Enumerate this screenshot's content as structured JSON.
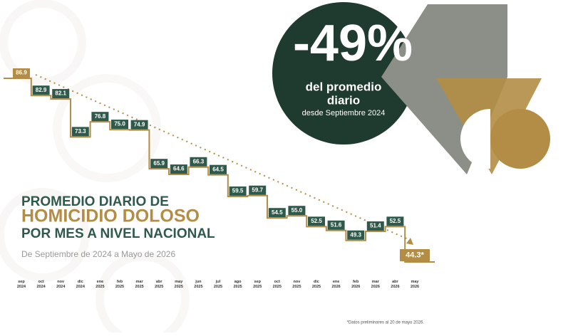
{
  "chart_data": {
    "type": "step",
    "title_lines": [
      "PROMEDIO DIARIO DE",
      "HOMICIDIO DOLOSO",
      "POR MES A NIVEL NACIONAL"
    ],
    "subtitle": "De Septiembre de 2024 a Mayo de 2026",
    "headline": {
      "value": "-49%",
      "lines": [
        "del promedio",
        "diario"
      ],
      "since": "desde Septiembre 2024"
    },
    "footnote": "*Datos preliminares al 20 de mayo 2026.",
    "categories": [
      "sep 2024",
      "oct 2024",
      "nov 2024",
      "dic 2024",
      "ene 2025",
      "feb 2025",
      "mar 2025",
      "abr 2025",
      "may 2025",
      "jun 2025",
      "jul 2025",
      "ago 2025",
      "sep 2025",
      "oct 2025",
      "nov 2025",
      "dic 2025",
      "ene 2026",
      "feb 2026",
      "mar 2026",
      "abr 2026",
      "may 2026"
    ],
    "values": [
      86.9,
      82.9,
      82.1,
      73.3,
      76.8,
      75.0,
      74.9,
      65.9,
      64.6,
      66.3,
      64.5,
      59.5,
      59.7,
      54.5,
      55.0,
      52.5,
      51.6,
      49.3,
      51.4,
      52.5,
      44.3
    ],
    "value_labels": [
      "86.9",
      "82.9",
      "82.1",
      "73.3",
      "76.8",
      "75.0",
      "74.9",
      "65.9",
      "64.6",
      "66.3",
      "64.5",
      "59.5",
      "59.7",
      "54.5",
      "55.0",
      "52.5",
      "51.6",
      "49.3",
      "51.4",
      "52.5",
      "44.3*"
    ],
    "line_color": "#b38d45",
    "box_color": "#2f5a4b",
    "highlight_color": "#b38d45"
  }
}
